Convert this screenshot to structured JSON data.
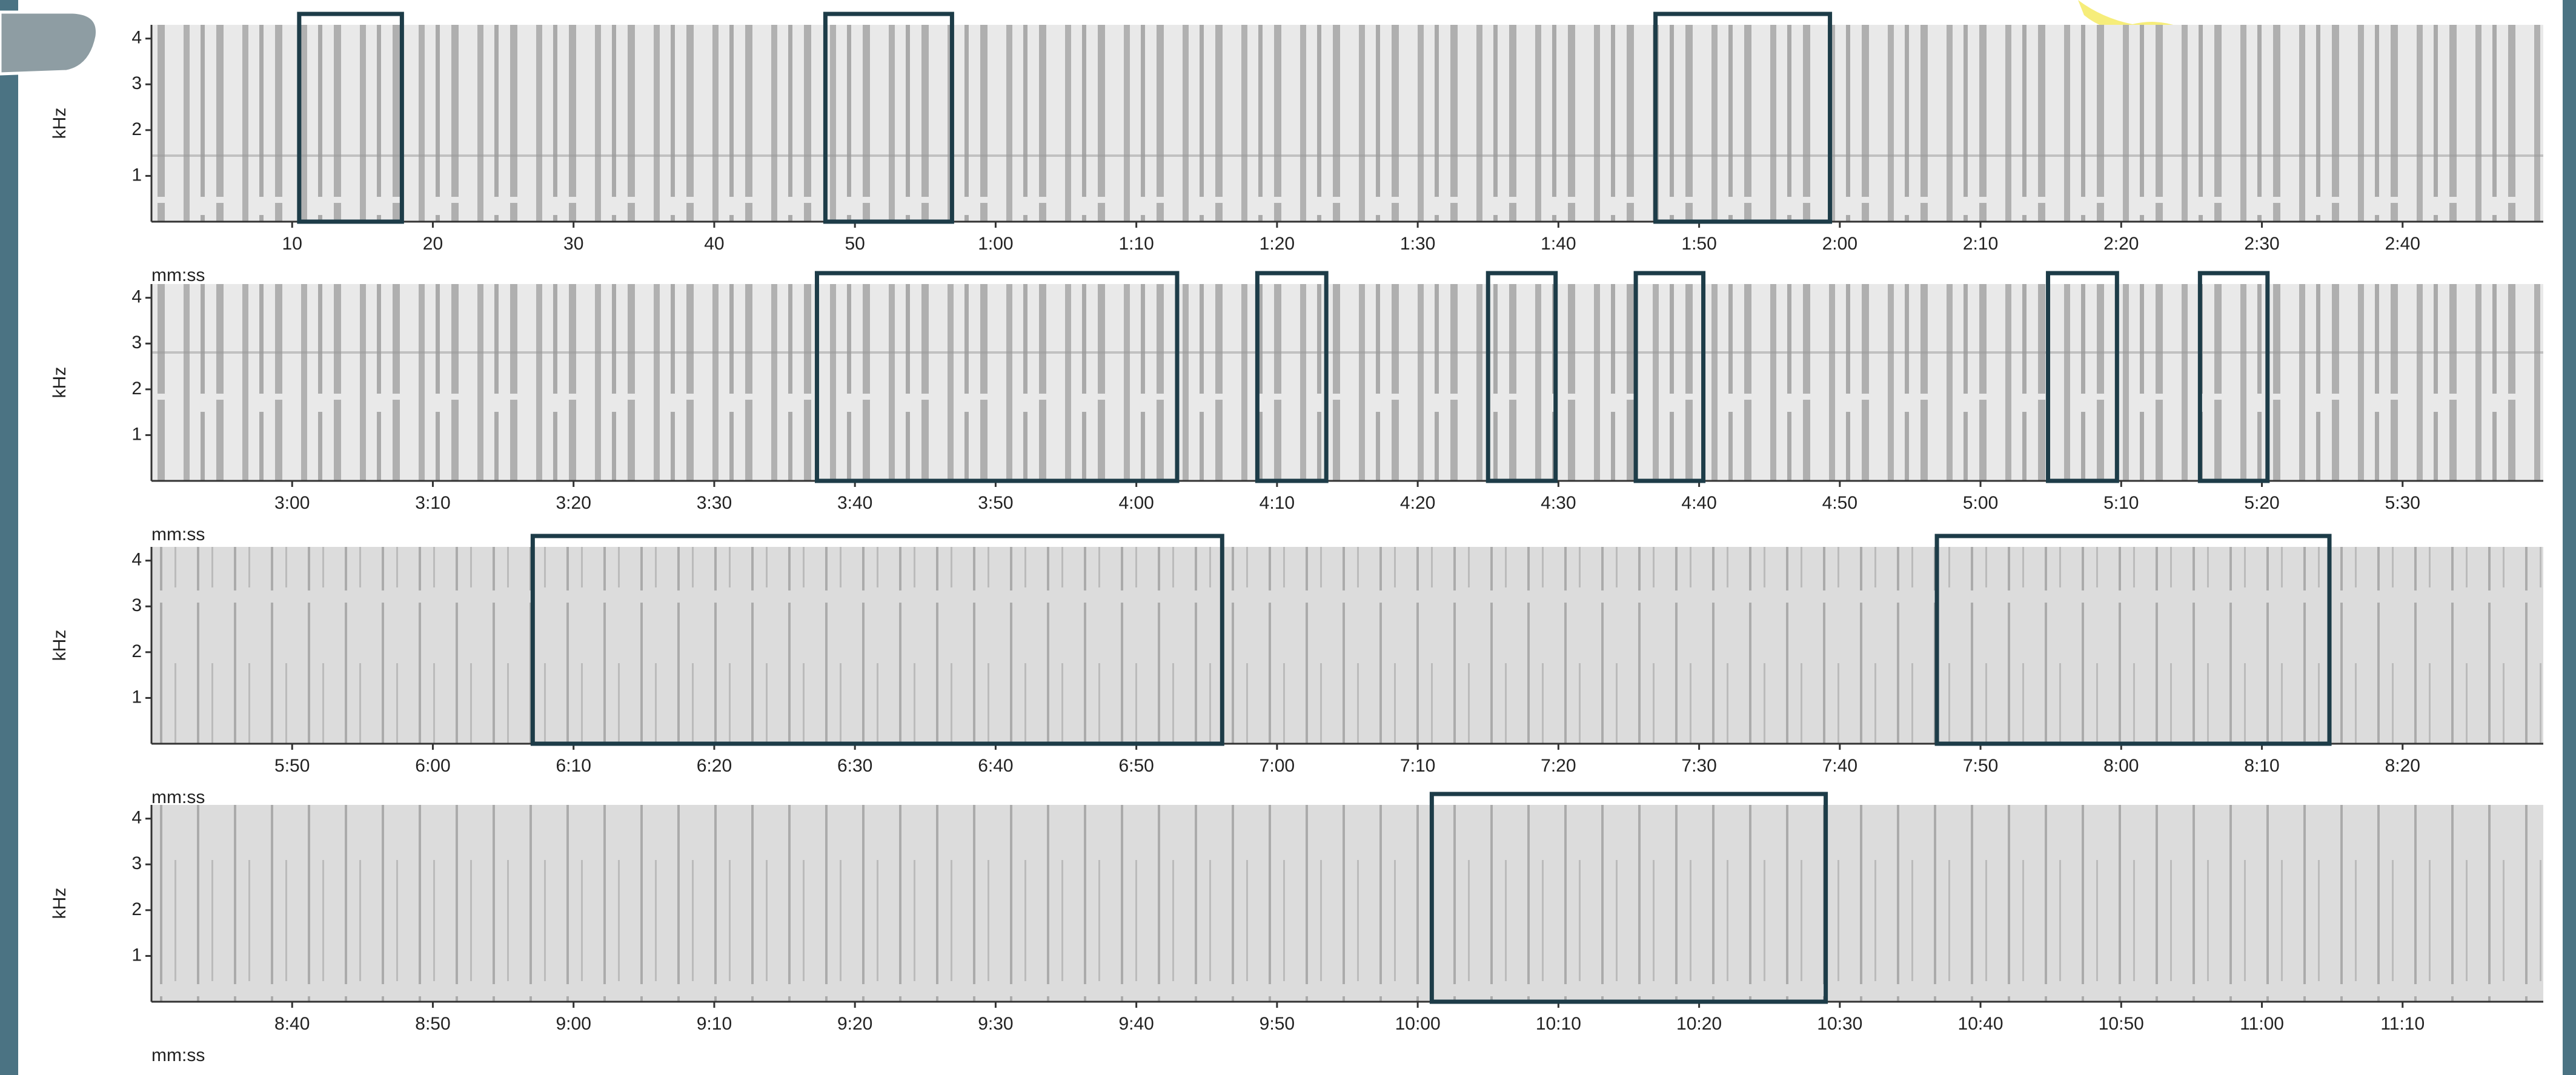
{
  "chart_data": [
    {
      "type": "spectrogram",
      "y_label": "kHz",
      "x_label": "mm:ss",
      "xlim": [
        0,
        170
      ],
      "ylim": [
        0,
        4.3
      ],
      "yticks": [
        1,
        2,
        3,
        4
      ],
      "xticks": [
        10,
        20,
        30,
        40,
        50,
        {
          "value": 60,
          "label": "1:00"
        },
        {
          "value": 70,
          "label": "1:10"
        },
        {
          "value": 80,
          "label": "1:20"
        },
        {
          "value": 90,
          "label": "1:30"
        },
        {
          "value": 100,
          "label": "1:40"
        },
        {
          "value": 110,
          "label": "1:50"
        },
        {
          "value": 120,
          "label": "2:00"
        },
        {
          "value": 130,
          "label": "2:10"
        },
        {
          "value": 140,
          "label": "2:20"
        },
        {
          "value": 150,
          "label": "2:30"
        },
        {
          "value": 160,
          "label": "2:40"
        }
      ],
      "highlights": [
        [
          10.5,
          17.8
        ],
        [
          47.9,
          56.9
        ],
        [
          106.9,
          119.3
        ]
      ]
    },
    {
      "type": "spectrogram",
      "y_label": "kHz",
      "x_label": "mm:ss",
      "xlim": [
        170,
        340
      ],
      "ylim": [
        0,
        4.3
      ],
      "yticks": [
        1,
        2,
        3,
        4
      ],
      "xticks": [
        {
          "value": 180,
          "label": "3:00"
        },
        {
          "value": 190,
          "label": "3:10"
        },
        {
          "value": 200,
          "label": "3:20"
        },
        {
          "value": 210,
          "label": "3:30"
        },
        {
          "value": 220,
          "label": "3:40"
        },
        {
          "value": 230,
          "label": "3:50"
        },
        {
          "value": 240,
          "label": "4:00"
        },
        {
          "value": 250,
          "label": "4:10"
        },
        {
          "value": 260,
          "label": "4:20"
        },
        {
          "value": 270,
          "label": "4:30"
        },
        {
          "value": 280,
          "label": "4:40"
        },
        {
          "value": 290,
          "label": "4:50"
        },
        {
          "value": 300,
          "label": "5:00"
        },
        {
          "value": 310,
          "label": "5:10"
        },
        {
          "value": 320,
          "label": "5:20"
        },
        {
          "value": 330,
          "label": "5:30"
        }
      ],
      "highlights": [
        [
          217.3,
          242.9
        ],
        [
          248.6,
          253.5
        ],
        [
          265,
          269.8
        ],
        [
          275.5,
          280.3
        ],
        [
          304.8,
          309.7
        ],
        [
          315.6,
          320.4
        ]
      ]
    },
    {
      "type": "spectrogram",
      "y_label": "kHz",
      "x_label": "mm:ss",
      "xlim": [
        340,
        510
      ],
      "ylim": [
        0,
        4.3
      ],
      "yticks": [
        1,
        2,
        3,
        4
      ],
      "xticks": [
        {
          "value": 350,
          "label": "5:50"
        },
        {
          "value": 360,
          "label": "6:00"
        },
        {
          "value": 370,
          "label": "6:10"
        },
        {
          "value": 380,
          "label": "6:20"
        },
        {
          "value": 390,
          "label": "6:30"
        },
        {
          "value": 400,
          "label": "6:40"
        },
        {
          "value": 410,
          "label": "6:50"
        },
        {
          "value": 420,
          "label": "7:00"
        },
        {
          "value": 430,
          "label": "7:10"
        },
        {
          "value": 440,
          "label": "7:20"
        },
        {
          "value": 450,
          "label": "7:30"
        },
        {
          "value": 460,
          "label": "7:40"
        },
        {
          "value": 470,
          "label": "7:50"
        },
        {
          "value": 480,
          "label": "8:00"
        },
        {
          "value": 490,
          "label": "8:10"
        },
        {
          "value": 500,
          "label": "8:20"
        }
      ],
      "highlights": [
        [
          367.1,
          416.1
        ],
        [
          466.9,
          494.8
        ]
      ]
    },
    {
      "type": "spectrogram",
      "y_label": "kHz",
      "x_label": "mm:ss",
      "xlim": [
        510,
        680
      ],
      "ylim": [
        0,
        4.3
      ],
      "yticks": [
        1,
        2,
        3,
        4
      ],
      "xticks": [
        {
          "value": 520,
          "label": "8:40"
        },
        {
          "value": 530,
          "label": "8:50"
        },
        {
          "value": 540,
          "label": "9:00"
        },
        {
          "value": 550,
          "label": "9:10"
        },
        {
          "value": 560,
          "label": "9:20"
        },
        {
          "value": 570,
          "label": "9:30"
        },
        {
          "value": 580,
          "label": "9:40"
        },
        {
          "value": 590,
          "label": "9:50"
        },
        {
          "value": 600,
          "label": "10:00"
        },
        {
          "value": 610,
          "label": "10:10"
        },
        {
          "value": 620,
          "label": "10:20"
        },
        {
          "value": 630,
          "label": "10:30"
        },
        {
          "value": 640,
          "label": "10:40"
        },
        {
          "value": 650,
          "label": "10:50"
        },
        {
          "value": 660,
          "label": "11:00"
        },
        {
          "value": 670,
          "label": "11:10"
        }
      ],
      "highlights": [
        [
          601,
          629
        ]
      ]
    }
  ]
}
